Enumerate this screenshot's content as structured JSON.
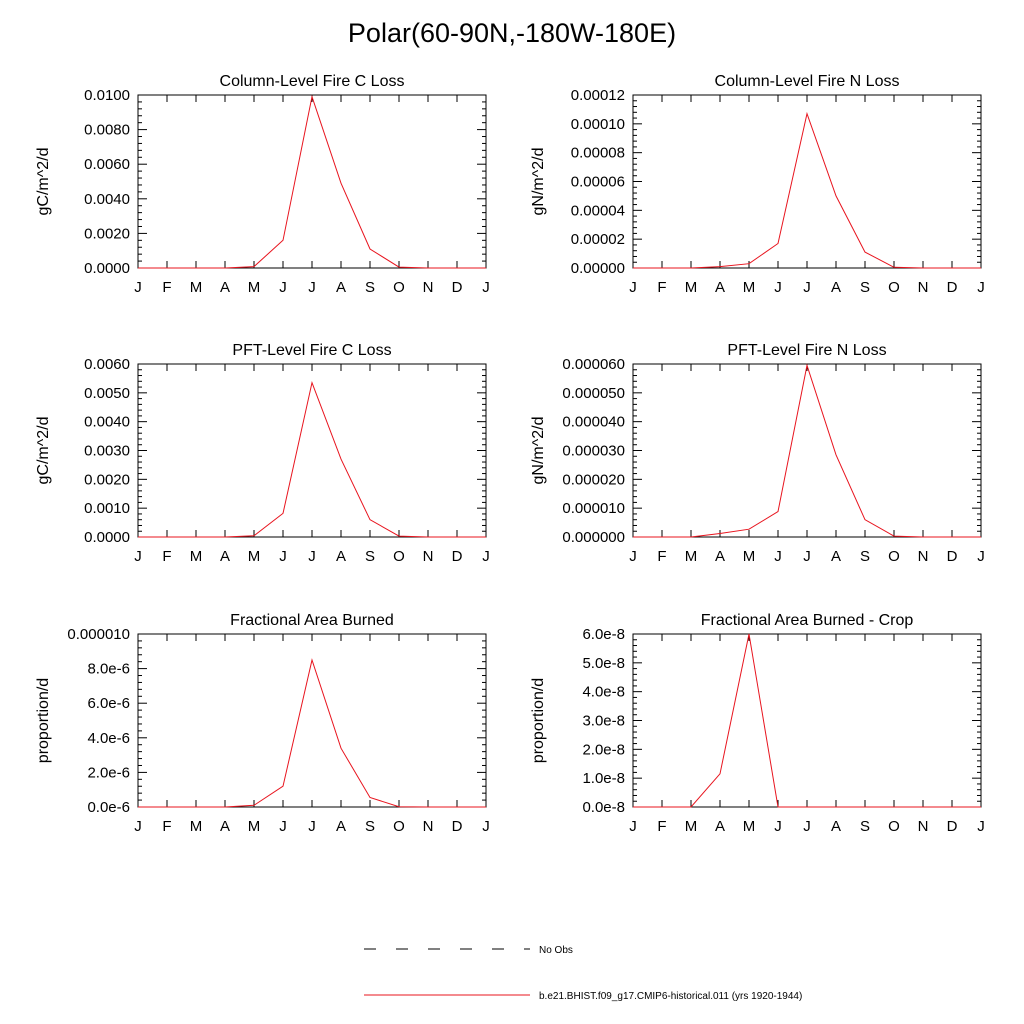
{
  "title": "Polar(60-90N,-180W-180E)",
  "colors": {
    "model": "#e8141e",
    "obs": "#000000",
    "axis": "#000000"
  },
  "legend": {
    "obs_label": "No Obs",
    "model_label": "b.e21.BHIST.f09_g17.CMIP6-historical.011 (yrs 1920-1944)"
  },
  "chart_data": [
    {
      "type": "line",
      "title": "Column-Level Fire C Loss",
      "ylabel": "gC/m^2/d",
      "categories": [
        "J",
        "F",
        "M",
        "A",
        "M",
        "J",
        "J",
        "A",
        "S",
        "O",
        "N",
        "D",
        "J"
      ],
      "yticks": [
        "0.0000",
        "0.0020",
        "0.0040",
        "0.0060",
        "0.0080",
        "0.0100"
      ],
      "ylim": [
        0,
        0.01
      ],
      "series": [
        {
          "values": [
            0,
            0,
            0,
            0,
            8e-05,
            0.0016,
            0.0099,
            0.0049,
            0.0011,
            5e-05,
            0,
            0,
            0
          ]
        }
      ]
    },
    {
      "type": "line",
      "title": "Column-Level Fire N Loss",
      "ylabel": "gN/m^2/d",
      "categories": [
        "J",
        "F",
        "M",
        "A",
        "M",
        "J",
        "J",
        "A",
        "S",
        "O",
        "N",
        "D",
        "J"
      ],
      "yticks": [
        "0.00000",
        "0.00002",
        "0.00004",
        "0.00006",
        "0.00008",
        "0.00010",
        "0.00012"
      ],
      "ylim": [
        0,
        0.00012
      ],
      "series": [
        {
          "values": [
            0,
            0,
            0,
            1e-06,
            3e-06,
            1.7e-05,
            0.000107,
            5e-05,
            1.1e-05,
            5e-07,
            0,
            0,
            0
          ]
        }
      ]
    },
    {
      "type": "line",
      "title": "PFT-Level Fire C Loss",
      "ylabel": "gC/m^2/d",
      "categories": [
        "J",
        "F",
        "M",
        "A",
        "M",
        "J",
        "J",
        "A",
        "S",
        "O",
        "N",
        "D",
        "J"
      ],
      "yticks": [
        "0.0000",
        "0.0010",
        "0.0020",
        "0.0030",
        "0.0040",
        "0.0050",
        "0.0060"
      ],
      "ylim": [
        0,
        0.006
      ],
      "series": [
        {
          "values": [
            0,
            0,
            0,
            0,
            4e-05,
            0.00082,
            0.00535,
            0.0027,
            0.0006,
            3e-05,
            0,
            0,
            0
          ]
        }
      ]
    },
    {
      "type": "line",
      "title": "PFT-Level Fire N Loss",
      "ylabel": "gN/m^2/d",
      "categories": [
        "J",
        "F",
        "M",
        "A",
        "M",
        "J",
        "J",
        "A",
        "S",
        "O",
        "N",
        "D",
        "J"
      ],
      "yticks": [
        "0.000000",
        "0.000010",
        "0.000020",
        "0.000030",
        "0.000040",
        "0.000050",
        "0.000060"
      ],
      "ylim": [
        0,
        6e-05
      ],
      "series": [
        {
          "values": [
            0,
            0,
            0,
            1.2e-06,
            2.7e-06,
            8.8e-06,
            5.95e-05,
            2.85e-05,
            6e-06,
            3e-07,
            0,
            0,
            0
          ]
        }
      ]
    },
    {
      "type": "line",
      "title": "Fractional Area Burned",
      "ylabel": "proportion/d",
      "categories": [
        "J",
        "F",
        "M",
        "A",
        "M",
        "J",
        "J",
        "A",
        "S",
        "O",
        "N",
        "D",
        "J"
      ],
      "yticks": [
        "0.0e-6",
        "2.0e-6",
        "4.0e-6",
        "6.0e-6",
        "8.0e-6",
        "0.000010"
      ],
      "ylim": [
        0,
        1e-05
      ],
      "series": [
        {
          "values": [
            0,
            0,
            0,
            0,
            1e-07,
            1.2e-06,
            8.5e-06,
            3.4e-06,
            5.5e-07,
            2e-08,
            0,
            0,
            0
          ]
        }
      ]
    },
    {
      "type": "line",
      "title": "Fractional Area Burned - Crop",
      "ylabel": "proportion/d",
      "categories": [
        "J",
        "F",
        "M",
        "A",
        "M",
        "J",
        "J",
        "A",
        "S",
        "O",
        "N",
        "D",
        "J"
      ],
      "yticks": [
        "0.0e-8",
        "1.0e-8",
        "2.0e-8",
        "3.0e-8",
        "4.0e-8",
        "5.0e-8",
        "6.0e-8"
      ],
      "ylim": [
        0,
        6e-08
      ],
      "series": [
        {
          "values": [
            0,
            0,
            0,
            1.15e-08,
            6e-08,
            0,
            0,
            0,
            0,
            0,
            0,
            0,
            0
          ]
        }
      ]
    }
  ]
}
